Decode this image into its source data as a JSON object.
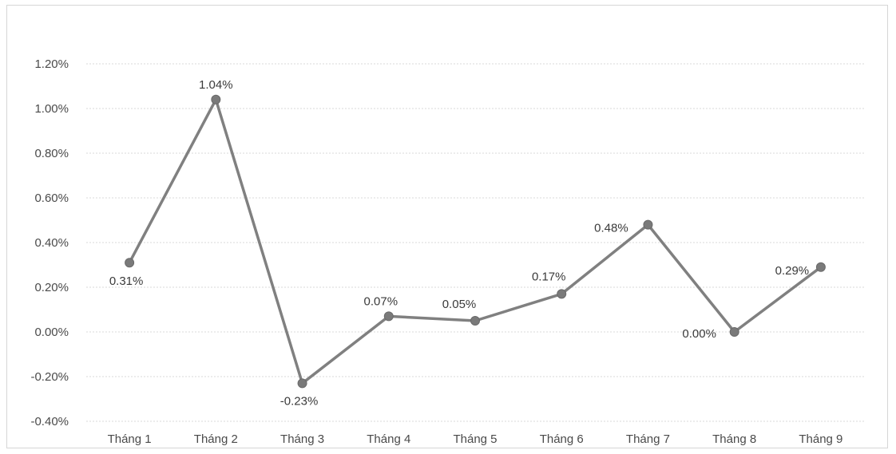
{
  "chart_data": {
    "type": "line",
    "title": "",
    "xlabel": "",
    "ylabel": "",
    "categories": [
      "Tháng 1",
      "Tháng 2",
      "Tháng 3",
      "Tháng 4",
      "Tháng 5",
      "Tháng 6",
      "Tháng 7",
      "Tháng 8",
      "Tháng 9"
    ],
    "series": [
      {
        "values": [
          0.31,
          1.04,
          -0.23,
          0.07,
          0.05,
          0.17,
          0.48,
          0.0,
          0.29
        ],
        "labels": [
          "0.31%",
          "1.04%",
          "-0.23%",
          "0.07%",
          "0.05%",
          "0.17%",
          "0.48%",
          "0.00%",
          "0.29%"
        ]
      }
    ],
    "ylim": [
      -0.4,
      1.2
    ],
    "yticks": [
      1.2,
      1.0,
      0.8,
      0.6,
      0.4,
      0.2,
      0.0,
      -0.2,
      -0.4
    ],
    "ytick_labels": [
      "1.20%",
      "1.00%",
      "0.80%",
      "0.60%",
      "0.40%",
      "0.20%",
      "0.00%",
      "-0.20%",
      "-0.40%"
    ],
    "grid": true,
    "legend": "none",
    "line_color": "#808080"
  }
}
